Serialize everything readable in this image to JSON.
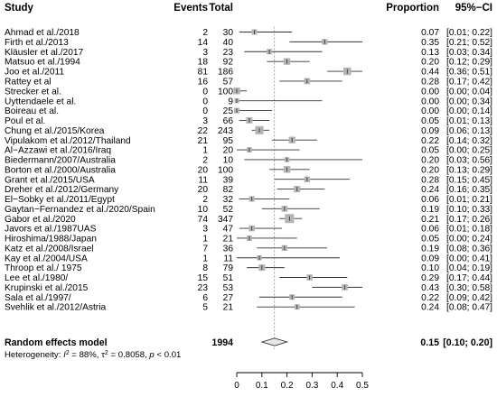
{
  "chart_data": {
    "type": "forest",
    "headers": {
      "study": "Study",
      "events": "Events",
      "total": "Total",
      "proportion": "Proportion",
      "ci": "95%−CI"
    },
    "studies": [
      {
        "label": "Ahmad et al./2018",
        "events": "2",
        "total": "30",
        "proportion": 0.07,
        "lower": 0.01,
        "upper": 0.22,
        "prop_text": "0.07",
        "ci_text": "[0.01; 0.22]"
      },
      {
        "label": "Firth et al./2013",
        "events": "14",
        "total": "40",
        "proportion": 0.35,
        "lower": 0.21,
        "upper": 0.52,
        "prop_text": "0.35",
        "ci_text": "[0.21; 0.52]"
      },
      {
        "label": "Kläusler et al./2017",
        "events": "3",
        "total": "23",
        "proportion": 0.13,
        "lower": 0.03,
        "upper": 0.34,
        "prop_text": "0.13",
        "ci_text": "[0.03; 0.34]"
      },
      {
        "label": "Matsuo et al./1994",
        "events": "18",
        "total": "92",
        "proportion": 0.2,
        "lower": 0.12,
        "upper": 0.29,
        "prop_text": "0.20",
        "ci_text": "[0.12; 0.29]"
      },
      {
        "label": "Joo et al./2011",
        "events": "81",
        "total": "186",
        "proportion": 0.44,
        "lower": 0.36,
        "upper": 0.51,
        "prop_text": "0.44",
        "ci_text": "[0.36; 0.51]"
      },
      {
        "label": "Rattey et al",
        "events": "16",
        "total": "57",
        "proportion": 0.28,
        "lower": 0.17,
        "upper": 0.42,
        "prop_text": "0.28",
        "ci_text": "[0.17; 0.42]"
      },
      {
        "label": "Strecker et al.",
        "events": "0",
        "total": "100",
        "proportion": 0.0,
        "lower": 0.0,
        "upper": 0.04,
        "prop_text": "0.00",
        "ci_text": "[0.00; 0.04]"
      },
      {
        "label": "Uyttendaele et al.",
        "events": "0",
        "total": "9",
        "proportion": 0.0,
        "lower": 0.0,
        "upper": 0.34,
        "prop_text": "0.00",
        "ci_text": "[0.00; 0.34]"
      },
      {
        "label": "Boireau et al.",
        "events": "0",
        "total": "25",
        "proportion": 0.0,
        "lower": 0.0,
        "upper": 0.14,
        "prop_text": "0.00",
        "ci_text": "[0.00; 0.14]"
      },
      {
        "label": "Poul et al.",
        "events": "3",
        "total": "66",
        "proportion": 0.05,
        "lower": 0.01,
        "upper": 0.13,
        "prop_text": "0.05",
        "ci_text": "[0.01; 0.13]"
      },
      {
        "label": "Chung et al./2015/Korea",
        "events": "22",
        "total": "243",
        "proportion": 0.09,
        "lower": 0.06,
        "upper": 0.13,
        "prop_text": "0.09",
        "ci_text": "[0.06; 0.13]"
      },
      {
        "label": "Vipulakom et al./2012/Thailand",
        "events": "21",
        "total": "95",
        "proportion": 0.22,
        "lower": 0.14,
        "upper": 0.32,
        "prop_text": "0.22",
        "ci_text": "[0.14; 0.32]"
      },
      {
        "label": "Al−Azzawi et al./2016/Iraq",
        "events": "1",
        "total": "20",
        "proportion": 0.05,
        "lower": 0.0,
        "upper": 0.25,
        "prop_text": "0.05",
        "ci_text": "[0.00; 0.25]"
      },
      {
        "label": "Biedermann/2007/Australia",
        "events": "2",
        "total": "10",
        "proportion": 0.2,
        "lower": 0.03,
        "upper": 0.56,
        "prop_text": "0.20",
        "ci_text": "[0.03; 0.56]"
      },
      {
        "label": "Borton et al./2000/Australia",
        "events": "20",
        "total": "100",
        "proportion": 0.2,
        "lower": 0.13,
        "upper": 0.29,
        "prop_text": "0.20",
        "ci_text": "[0.13; 0.29]"
      },
      {
        "label": "Grant et al./2015/USA",
        "events": "11",
        "total": "39",
        "proportion": 0.28,
        "lower": 0.15,
        "upper": 0.45,
        "prop_text": "0.28",
        "ci_text": "[0.15; 0.45]"
      },
      {
        "label": "Dreher et al./2012/Germany",
        "events": "20",
        "total": "82",
        "proportion": 0.24,
        "lower": 0.16,
        "upper": 0.35,
        "prop_text": "0.24",
        "ci_text": "[0.16; 0.35]"
      },
      {
        "label": "El−Sobky et al./2011/Egypt",
        "events": "2",
        "total": "32",
        "proportion": 0.06,
        "lower": 0.01,
        "upper": 0.21,
        "prop_text": "0.06",
        "ci_text": "[0.01; 0.21]"
      },
      {
        "label": "Gaytan−Fernandez et al./2020/Spain",
        "events": "10",
        "total": "52",
        "proportion": 0.19,
        "lower": 0.1,
        "upper": 0.33,
        "prop_text": "0.19",
        "ci_text": "[0.10; 0.33]"
      },
      {
        "label": "Gabor et al./2020",
        "events": "74",
        "total": "347",
        "proportion": 0.21,
        "lower": 0.17,
        "upper": 0.26,
        "prop_text": "0.21",
        "ci_text": "[0.17; 0.26]"
      },
      {
        "label": "Javors et al./1987UAS",
        "events": "3",
        "total": "47",
        "proportion": 0.06,
        "lower": 0.01,
        "upper": 0.18,
        "prop_text": "0.06",
        "ci_text": "[0.01; 0.18]"
      },
      {
        "label": "Hiroshima/1988/Japan",
        "events": "1",
        "total": "21",
        "proportion": 0.05,
        "lower": 0.0,
        "upper": 0.24,
        "prop_text": "0.05",
        "ci_text": "[0.00; 0.24]"
      },
      {
        "label": "Katz et al./2008/Israel",
        "events": "7",
        "total": "36",
        "proportion": 0.19,
        "lower": 0.08,
        "upper": 0.36,
        "prop_text": "0.19",
        "ci_text": "[0.08; 0.36]"
      },
      {
        "label": "Kay et al./2004/USA",
        "events": "1",
        "total": "11",
        "proportion": 0.09,
        "lower": 0.0,
        "upper": 0.41,
        "prop_text": "0.09",
        "ci_text": "[0.00; 0.41]"
      },
      {
        "label": "Throop et al./ 1975",
        "events": "8",
        "total": "79",
        "proportion": 0.1,
        "lower": 0.04,
        "upper": 0.19,
        "prop_text": "0.10",
        "ci_text": "[0.04; 0.19]"
      },
      {
        "label": "Lee et al./1980/",
        "events": "15",
        "total": "51",
        "proportion": 0.29,
        "lower": 0.17,
        "upper": 0.44,
        "prop_text": "0.29",
        "ci_text": "[0.17; 0.44]"
      },
      {
        "label": "Krupinski et al./2015",
        "events": "23",
        "total": "53",
        "proportion": 0.43,
        "lower": 0.3,
        "upper": 0.58,
        "prop_text": "0.43",
        "ci_text": "[0.30; 0.58]"
      },
      {
        "label": "Sala et al./1997/",
        "events": "6",
        "total": "27",
        "proportion": 0.22,
        "lower": 0.09,
        "upper": 0.42,
        "prop_text": "0.22",
        "ci_text": "[0.09; 0.42]"
      },
      {
        "label": "Svehlik et al./2012/Astria",
        "events": "5",
        "total": "21",
        "proportion": 0.24,
        "lower": 0.08,
        "upper": 0.47,
        "prop_text": "0.24",
        "ci_text": "[0.08; 0.47]"
      }
    ],
    "summary": {
      "label": "Random effects model",
      "total": "1994",
      "proportion": 0.15,
      "lower": 0.1,
      "upper": 0.2,
      "prop_text": "0.15",
      "ci_text": "[0.10; 0.20]"
    },
    "heterogeneity": {
      "prefix": "Heterogeneity: ",
      "i2_symbol": "I",
      "i2_value": " = 88%, ",
      "tau2_symbol": "τ",
      "tau2_value": " = 0.8058, ",
      "p_symbol": "p",
      "p_value": " < 0.01"
    },
    "x_axis": {
      "min": 0,
      "max": 0.5,
      "ticks": [
        "0",
        "0.1",
        "0.2",
        "0.3",
        "0.4",
        "0.5"
      ],
      "tick_values": [
        0,
        0.1,
        0.2,
        0.3,
        0.4,
        0.5
      ]
    },
    "reference_line": 0.15,
    "colors": {
      "square": "#b4b4b4",
      "line": "#333333",
      "reference": "#888888",
      "diamond": "#e8e8e8"
    }
  }
}
